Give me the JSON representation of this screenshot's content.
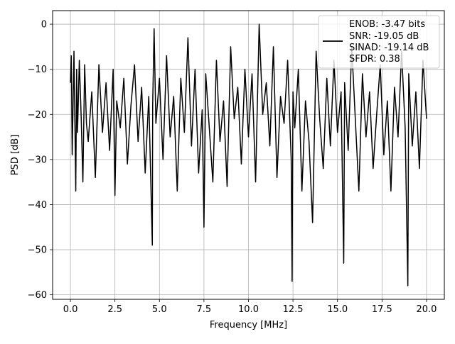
{
  "chart_data": {
    "type": "line",
    "title": "",
    "xlabel": "Frequency [MHz]",
    "ylabel": "PSD [dB]",
    "xlim": [
      -1.0,
      21.0
    ],
    "ylim": [
      -61.0,
      3.0
    ],
    "xticks": [
      0.0,
      2.5,
      5.0,
      7.5,
      10.0,
      12.5,
      15.0,
      17.5,
      20.0
    ],
    "xtick_labels": [
      "0.0",
      "2.5",
      "5.0",
      "7.5",
      "10.0",
      "12.5",
      "15.0",
      "17.5",
      "20.0"
    ],
    "yticks": [
      0,
      -10,
      -20,
      -30,
      -40,
      -50,
      -60
    ],
    "ytick_labels": [
      "0",
      "−10",
      "−20",
      "−30",
      "−40",
      "−50",
      "−60"
    ],
    "grid": true,
    "legend_position": "top-right",
    "legend_lines": [
      "ENOB: -3.47 bits",
      "SNR: -19.05 dB",
      "SINAD: -19.14 dB",
      "SFDR: 0.38"
    ],
    "series": [
      {
        "color": "#000000",
        "x": [
          0.0,
          0.05,
          0.1,
          0.2,
          0.3,
          0.35,
          0.4,
          0.5,
          0.6,
          0.7,
          0.8,
          0.9,
          1.0,
          1.2,
          1.4,
          1.6,
          1.8,
          2.0,
          2.2,
          2.4,
          2.5,
          2.6,
          2.8,
          3.0,
          3.2,
          3.4,
          3.6,
          3.8,
          4.0,
          4.2,
          4.4,
          4.6,
          4.62,
          4.7,
          4.8,
          5.0,
          5.2,
          5.4,
          5.6,
          5.8,
          6.0,
          6.2,
          6.4,
          6.6,
          6.8,
          7.0,
          7.2,
          7.4,
          7.5,
          7.6,
          7.8,
          8.0,
          8.2,
          8.4,
          8.6,
          8.8,
          9.0,
          9.2,
          9.4,
          9.6,
          9.8,
          10.0,
          10.2,
          10.4,
          10.6,
          10.8,
          11.0,
          11.2,
          11.4,
          11.6,
          11.8,
          12.0,
          12.2,
          12.4,
          12.45,
          12.5,
          12.6,
          12.8,
          13.0,
          13.2,
          13.4,
          13.6,
          13.8,
          14.0,
          14.2,
          14.4,
          14.6,
          14.8,
          15.0,
          15.2,
          15.35,
          15.4,
          15.6,
          15.8,
          16.0,
          16.2,
          16.4,
          16.6,
          16.8,
          17.0,
          17.2,
          17.4,
          17.6,
          17.8,
          18.0,
          18.2,
          18.4,
          18.6,
          18.8,
          18.95,
          19.0,
          19.2,
          19.4,
          19.6,
          19.8,
          20.0
        ],
        "y": [
          -13,
          -7,
          -29,
          -6,
          -37,
          -10,
          -24,
          -8,
          -20,
          -35,
          -9,
          -22,
          -26,
          -15,
          -34,
          -9,
          -24,
          -13,
          -28,
          -10,
          -38,
          -17,
          -23,
          -12,
          -31,
          -18,
          -9,
          -26,
          -14,
          -33,
          -16,
          -49,
          -18,
          -1,
          -22,
          -12,
          -30,
          -7,
          -25,
          -16,
          -37,
          -12,
          -24,
          -3,
          -27,
          -10,
          -33,
          -19,
          -45,
          -11,
          -23,
          -35,
          -8,
          -26,
          -17,
          -36,
          -5,
          -21,
          -14,
          -31,
          -10,
          -25,
          -11,
          -35,
          0,
          -20,
          -13,
          -27,
          -5,
          -34,
          -16,
          -22,
          -8,
          -30,
          -57,
          -15,
          -23,
          -10,
          -37,
          -17,
          -26,
          -44,
          -6,
          -21,
          -32,
          -12,
          -27,
          -8,
          -24,
          -15,
          -53,
          -13,
          -28,
          -5,
          -21,
          -37,
          -11,
          -25,
          -15,
          -32,
          -20,
          -9,
          -29,
          -17,
          -37,
          -14,
          -25,
          -6,
          -23,
          -58,
          -11,
          -27,
          -15,
          -32,
          -8,
          -21
        ]
      }
    ]
  }
}
